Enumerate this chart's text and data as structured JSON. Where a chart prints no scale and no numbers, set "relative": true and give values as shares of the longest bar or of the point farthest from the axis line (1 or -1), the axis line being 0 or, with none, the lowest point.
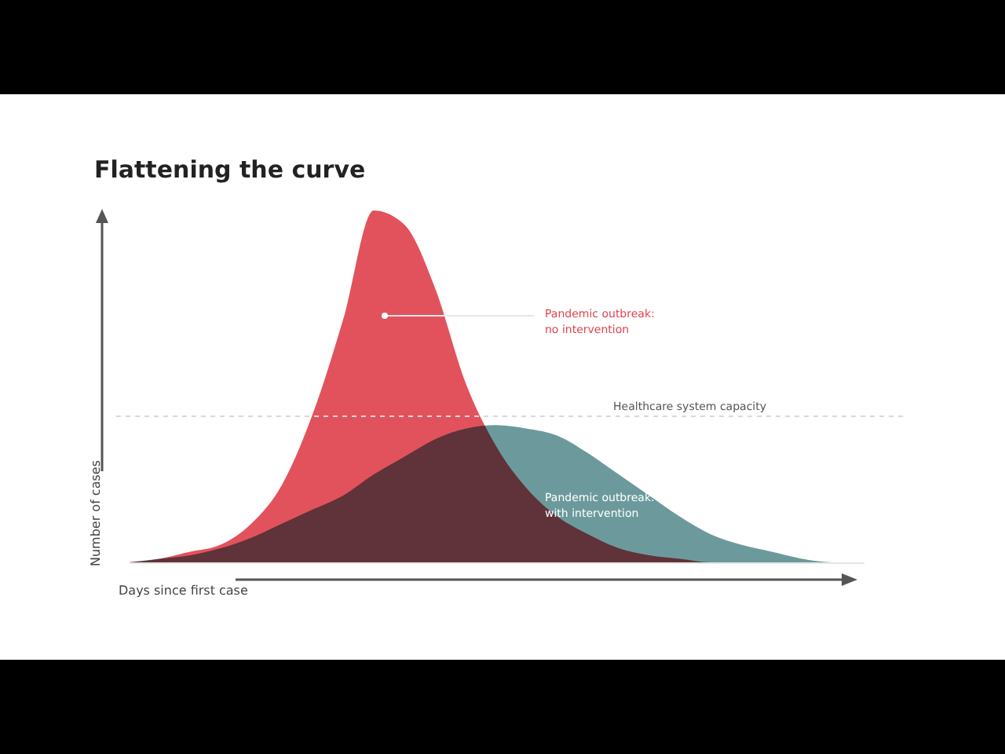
{
  "chart_data": {
    "type": "area",
    "title": "Flattening the curve",
    "xlabel": "Days since first case",
    "ylabel": "Number of cases",
    "relative": true,
    "legend": false,
    "grid": false,
    "categories": [
      null,
      null,
      null,
      null,
      null,
      null,
      null,
      null,
      null,
      null,
      null,
      null,
      null,
      null,
      null,
      null,
      null,
      null,
      null,
      null,
      null,
      null,
      null,
      null,
      null
    ],
    "series": [
      {
        "name": "Pandemic outbreak: no intervention",
        "color": "#e0454f",
        "values": [
          0,
          0.01,
          0.03,
          0.05,
          0.11,
          0.22,
          0.42,
          0.69,
          1,
          0.96,
          0.78,
          0.51,
          0.33,
          0.21,
          0.13,
          0.08,
          0.04,
          0.02,
          0.01,
          0,
          0,
          0,
          0,
          0,
          0
        ]
      },
      {
        "name": "Pandemic outbreak: with intervention",
        "color": "#6c9a9c",
        "values": [
          0,
          0.01,
          0.02,
          0.04,
          0.07,
          0.11,
          0.15,
          0.19,
          0.25,
          0.3,
          0.35,
          0.38,
          0.39,
          0.38,
          0.36,
          0.31,
          0.25,
          0.19,
          0.13,
          0.08,
          0.05,
          0.03,
          0.01,
          0,
          0
        ]
      }
    ],
    "ref_lines": [
      {
        "axis": "y",
        "value": 0.415,
        "label": "Healthcare system capacity",
        "color": "#d9d9d9",
        "line_style": "dashed"
      }
    ]
  }
}
